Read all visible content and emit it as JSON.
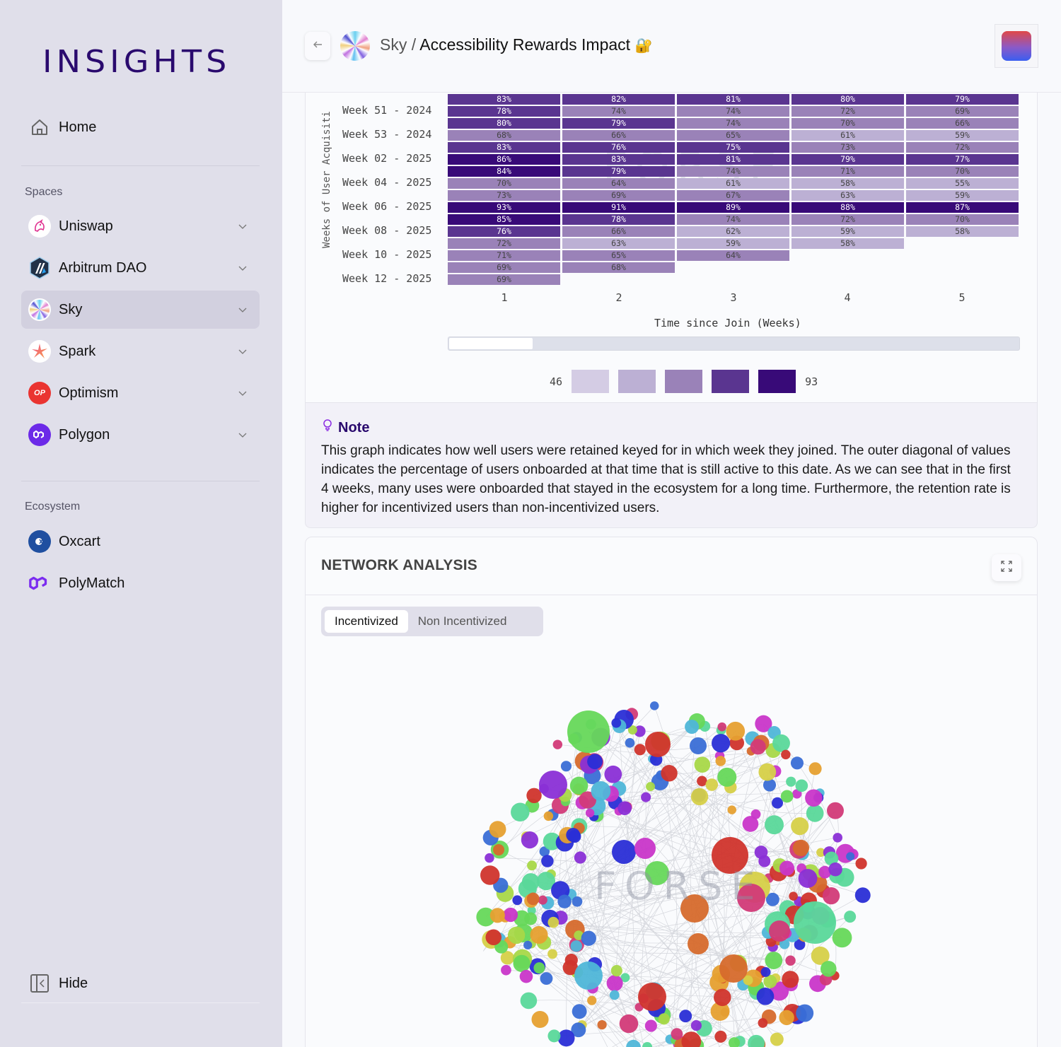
{
  "sidebar": {
    "logo": "INSIGHTS",
    "home_label": "Home",
    "spaces_heading": "Spaces",
    "spaces": [
      {
        "label": "Uniswap",
        "icon": "uniswap-icon",
        "active": false
      },
      {
        "label": "Arbitrum DAO",
        "icon": "arbitrum-icon",
        "active": false
      },
      {
        "label": "Sky",
        "icon": "sky-icon",
        "active": true
      },
      {
        "label": "Spark",
        "icon": "spark-icon",
        "active": false
      },
      {
        "label": "Optimism",
        "icon": "optimism-icon",
        "active": false
      },
      {
        "label": "Polygon",
        "icon": "polygon-icon",
        "active": false
      }
    ],
    "ecosystem_heading": "Ecosystem",
    "ecosystem": [
      {
        "label": "Oxcart",
        "icon": "oxcart-icon"
      },
      {
        "label": "PolyMatch",
        "icon": "polymatch-icon"
      }
    ],
    "hide_label": "Hide",
    "optimism_badge": "OP"
  },
  "header": {
    "space": "Sky",
    "separator": " / ",
    "title": "Accessibility Rewards Impact",
    "lock_glyph": "🔐"
  },
  "chart_data": [
    {
      "type": "heatmap",
      "title": "",
      "xlabel": "Time since Join (Weeks)",
      "ylabel": "Weeks of User Acquisition",
      "x": [
        "1",
        "2",
        "3",
        "4",
        "5"
      ],
      "y_tick_labels": [
        "Week 51 - 2024",
        "Week 53 - 2024",
        "Week 02 - 2025",
        "Week 04 - 2025",
        "Week 06 - 2025",
        "Week 08 - 2025",
        "Week 10 - 2025",
        "Week 12 - 2025"
      ],
      "rows": [
        [
          83,
          82,
          81,
          80,
          79
        ],
        [
          78,
          74,
          74,
          72,
          69
        ],
        [
          80,
          79,
          74,
          70,
          66
        ],
        [
          68,
          66,
          65,
          61,
          59
        ],
        [
          83,
          76,
          75,
          73,
          72
        ],
        [
          86,
          83,
          81,
          79,
          77
        ],
        [
          84,
          79,
          74,
          71,
          70
        ],
        [
          70,
          64,
          61,
          58,
          55
        ],
        [
          73,
          69,
          67,
          63,
          59
        ],
        [
          93,
          91,
          89,
          88,
          87
        ],
        [
          85,
          78,
          74,
          72,
          70
        ],
        [
          76,
          66,
          62,
          59,
          58
        ],
        [
          72,
          63,
          59,
          58
        ],
        [
          71,
          65,
          64
        ],
        [
          69,
          68
        ],
        [
          69
        ]
      ],
      "value_suffix": "%",
      "color_scale": {
        "min": 46,
        "max": 93,
        "colors": [
          "#d4cce4",
          "#bcb0d4",
          "#9a82b8",
          "#5a3590",
          "#380a78"
        ]
      }
    },
    {
      "type": "network",
      "title": "NETWORK ANALYSIS",
      "watermark": "FORSE"
    }
  ],
  "heatmap": {
    "x_ticks": [
      "1",
      "2",
      "3",
      "4",
      "5"
    ],
    "xlabel": "Time since Join (Weeks)",
    "ylabel": "Weeks of User Acquisiti",
    "row_labels": [
      "Week 51 - 2024",
      "Week 53 - 2024",
      "Week 02 - 2025",
      "Week 04 - 2025",
      "Week 06 - 2025",
      "Week 08 - 2025",
      "Week 10 - 2025",
      "Week 12 - 2025"
    ],
    "legend_min": "46",
    "legend_max": "93",
    "watermark": "FORSE"
  },
  "note": {
    "heading": "Note",
    "body": "This graph indicates how well users were retained keyed for in which week they joined. The outer diagonal of values indicates the percentage of users onboarded at that time that is still active to this date. As we can see that in the first 4 weeks, many uses were onboarded that stayed in the ecosystem for a long time. Furthermore, the retention rate is higher for incentivized users than non-incentivized users."
  },
  "network": {
    "title": "NETWORK ANALYSIS",
    "tabs": [
      {
        "label": "Incentivized",
        "active": true
      },
      {
        "label": "Non Incentivized",
        "active": false
      }
    ],
    "watermark": "FORSE"
  },
  "colors": {
    "brand": "#2a0a6e",
    "sidebar_bg": "#e0dfea",
    "active_item_bg": "#d2d0df"
  }
}
